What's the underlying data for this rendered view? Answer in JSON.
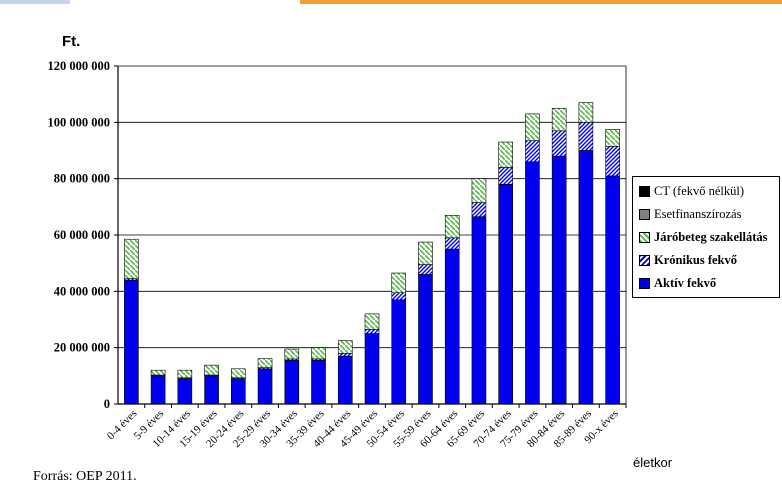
{
  "chart_data": {
    "type": "bar",
    "stacked": true,
    "ylabel": "Ft.",
    "xlabel": "életkor",
    "ylim": [
      0,
      120000000
    ],
    "yticks": [
      "0",
      "20 000 000",
      "40 000 000",
      "60 000 000",
      "80 000 000",
      "100 000 000",
      "120 000 000"
    ],
    "grid": true,
    "legend_position": "right",
    "categories": [
      "0-4 éves",
      "5-9 éves",
      "10-14 éves",
      "15-19 éves",
      "20-24 éves",
      "25-29 éves",
      "30-34 éves",
      "35-39 éves",
      "40-44 éves",
      "45-49 éves",
      "50-54 éves",
      "55-59 éves",
      "60-64 éves",
      "65-69 éves",
      "70-74 éves",
      "75-79 éves",
      "80-84 éves",
      "85-89 éves",
      "90-x éves"
    ],
    "series": [
      {
        "name": "Aktív fekvő",
        "color": "#0000ee",
        "pattern": "solid",
        "values": [
          44000000,
          10000000,
          9000000,
          10000000,
          9000000,
          12500000,
          15500000,
          15500000,
          17000000,
          25000000,
          37000000,
          46000000,
          55000000,
          66500000,
          78000000,
          86000000,
          88000000,
          90000000,
          81000000
        ]
      },
      {
        "name": "Krónikus fekvő",
        "color": "#0000ee",
        "pattern": "diagonal",
        "values": [
          500000,
          300000,
          300000,
          300000,
          300000,
          400000,
          500000,
          500000,
          1000000,
          1500000,
          2500000,
          3500000,
          4000000,
          5000000,
          6000000,
          7500000,
          9000000,
          10000000,
          10500000
        ]
      },
      {
        "name": "Járóbeteg szakellátás",
        "color": "#5ab84a",
        "pattern": "diagonal",
        "values": [
          14000000,
          1700000,
          2700000,
          3500000,
          3200000,
          3200000,
          3500000,
          4000000,
          4500000,
          5500000,
          7000000,
          8000000,
          8000000,
          8500000,
          9000000,
          9500000,
          8000000,
          7000000,
          6000000
        ]
      },
      {
        "name": "Esetfinanszírozás",
        "color": "#808080",
        "pattern": "solid",
        "values": [
          0,
          0,
          0,
          0,
          0,
          0,
          0,
          0,
          0,
          0,
          0,
          0,
          0,
          0,
          0,
          0,
          0,
          0,
          0
        ]
      },
      {
        "name": "CT (fekvő nélkül)",
        "color": "#000000",
        "pattern": "solid",
        "values": [
          0,
          0,
          0,
          0,
          0,
          0,
          0,
          0,
          0,
          0,
          0,
          0,
          0,
          0,
          0,
          0,
          0,
          0,
          0
        ]
      }
    ]
  },
  "legend": [
    {
      "label": "CT (fekvő nélkül)",
      "bold": false,
      "swatch": "black"
    },
    {
      "label": "Esetfinanszírozás",
      "bold": false,
      "swatch": "gray"
    },
    {
      "label": "Járóbeteg szakellátás",
      "bold": true,
      "swatch": "green-hatch"
    },
    {
      "label": "Krónikus fekvő",
      "bold": true,
      "swatch": "blue-hatch"
    },
    {
      "label": "Aktív fekvő",
      "bold": true,
      "swatch": "blue"
    }
  ],
  "source_note": "Forrás: OEP 2011."
}
